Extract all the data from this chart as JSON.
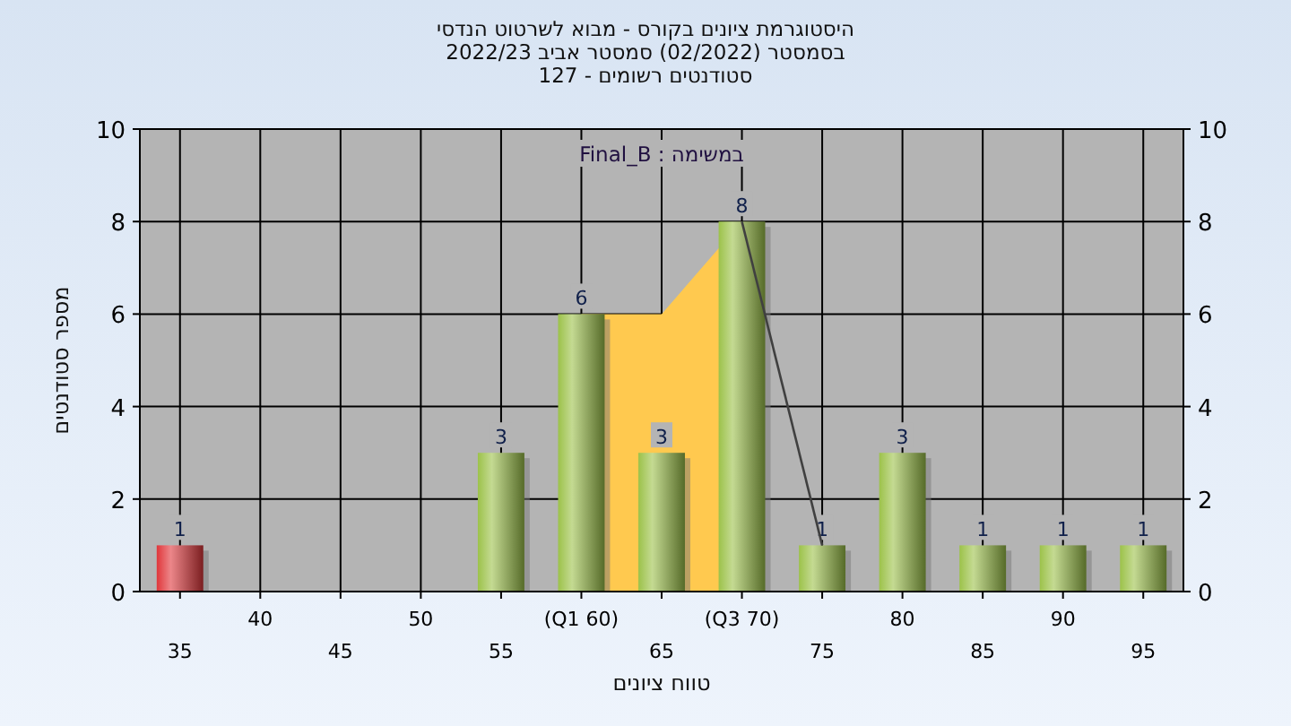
{
  "chart_data": {
    "type": "bar",
    "title": "היסטוגרמת ציונים בקורס - מבוא לשרטוט הנדסי",
    "subtitle": "בסמסטר (02/2022) סמסטר אביב 2022/23\nסטודנטים רשומים - 127",
    "xlabel": "טווח ציונים",
    "ylabel": "מספר סטודנטים",
    "annotations": [
      "במשימה : Final_B"
    ],
    "categories": [
      "35",
      "40",
      "45",
      "50",
      "55",
      "(Q1 60)",
      "65",
      "(Q3 70)",
      "75",
      "80",
      "85",
      "90",
      "95"
    ],
    "series": [
      {
        "type": "area",
        "color": "#ffc94f",
        "values": [
          null,
          null,
          null,
          null,
          null,
          6,
          6,
          8,
          null,
          null,
          null,
          null,
          null
        ]
      },
      {
        "colors": [
          "#e0363a",
          "#9cc24a",
          "#9cc24a",
          "#9cc24a",
          "#9cc24a",
          "#9cc24a",
          "#9cc24a",
          "#9cc24a",
          "#9cc24a",
          "#9cc24a",
          "#9cc24a",
          "#9cc24a",
          "#9cc24a"
        ],
        "values": [
          1,
          0,
          0,
          0,
          3,
          6,
          3,
          8,
          1,
          3,
          1,
          1,
          1
        ],
        "value_labels": [
          "1",
          null,
          null,
          null,
          "3",
          "6",
          "3",
          "8",
          "1",
          "3",
          "1",
          "1",
          "1"
        ]
      },
      {
        "type": "line",
        "color": "#404040",
        "values": [
          null,
          null,
          null,
          null,
          null,
          null,
          null,
          8,
          1,
          null,
          null,
          null,
          null
        ]
      }
    ],
    "ylim": [
      0,
      10
    ],
    "yticks": [
      0,
      2,
      4,
      6,
      8,
      10
    ],
    "y2lim": [
      0,
      10
    ],
    "y2ticks": [
      0,
      2,
      4,
      6,
      8,
      10
    ],
    "grid": true
  }
}
